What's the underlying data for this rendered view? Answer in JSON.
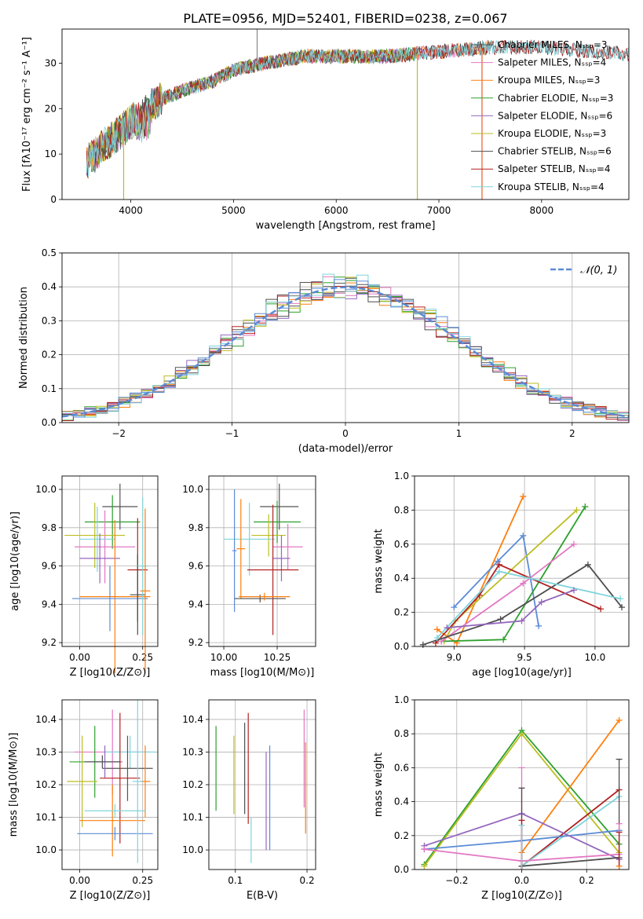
{
  "figure": {
    "title": "PLATE=0956, MJD=52401, FIBERID=0238, z=0.067"
  },
  "chart_data": [
    {
      "id": "spectrum",
      "type": "line",
      "xlabel": "wavelength [Angstrom, rest frame]",
      "ylabel": "Flux [fλ10⁻¹⁷ erg cm⁻² s⁻¹ A⁻¹]",
      "xlim": [
        3330,
        8850
      ],
      "ylim": [
        0,
        37.5
      ],
      "xticks": [
        4000,
        5000,
        6000,
        7000,
        8000
      ],
      "yticks": [
        0,
        10,
        20,
        30
      ],
      "legend_position": "right",
      "continuum_knots": [
        [
          3570,
          8
        ],
        [
          3700,
          11
        ],
        [
          3850,
          14
        ],
        [
          3950,
          16
        ],
        [
          4100,
          19
        ],
        [
          4300,
          22
        ],
        [
          4500,
          24
        ],
        [
          4800,
          26
        ],
        [
          5000,
          28.5
        ],
        [
          5300,
          30
        ],
        [
          5700,
          31.5
        ],
        [
          6000,
          31.5
        ],
        [
          6500,
          31.5
        ],
        [
          7000,
          32.5
        ],
        [
          7500,
          33.5
        ],
        [
          8000,
          33.5
        ],
        [
          8500,
          32.5
        ],
        [
          8850,
          32
        ]
      ],
      "spike_features_x": [
        3930,
        5230,
        6790,
        7420
      ],
      "series": [
        {
          "name": "Chabrier MILES, N_SSP=3",
          "color": "#555555",
          "xmax": 7500
        },
        {
          "name": "Salpeter MILES, N_SSP=4",
          "color": "#e377c2",
          "xmax": 7500
        },
        {
          "name": "Kroupa MILES, N_SSP=3",
          "color": "#ff7f0e",
          "xmax": 7500
        },
        {
          "name": "Chabrier ELODIE, N_SSP=3",
          "color": "#2ca02c",
          "xmax": 6800
        },
        {
          "name": "Salpeter ELODIE, N_SSP=6",
          "color": "#9467bd",
          "xmax": 6800
        },
        {
          "name": "Kroupa ELODIE, N_SSP=3",
          "color": "#bcbd22",
          "xmax": 6800
        },
        {
          "name": "Chabrier STELIB, N_SSP=6",
          "color": "#4d4d4d",
          "xmax": 8850
        },
        {
          "name": "Salpeter STELIB, N_SSP=4",
          "color": "#b22222",
          "xmax": 8850
        },
        {
          "name": "Kroupa STELIB, N_SSP=4",
          "color": "#7fd4dc",
          "xmax": 8850
        }
      ]
    },
    {
      "id": "residuals",
      "type": "histogram",
      "xlabel": "(data-model)/error",
      "ylabel": "Normed distribution",
      "xlim": [
        -2.5,
        2.5
      ],
      "ylim": [
        0,
        0.5
      ],
      "xticks": [
        -2,
        -1,
        0,
        1,
        2
      ],
      "yticks": [
        0.0,
        0.1,
        0.2,
        0.3,
        0.4,
        0.5
      ],
      "bin_width": 0.1,
      "grid": true,
      "reference_curve": {
        "label": "𝒩(0, 1)",
        "mu": 0,
        "sigma": 1,
        "color": "#5b8bd6"
      },
      "legend_position": "top-right",
      "series_colors": [
        "#555555",
        "#e377c2",
        "#ff7f0e",
        "#2ca02c",
        "#9467bd",
        "#bcbd22",
        "#4d4d4d",
        "#b22222",
        "#7fd4dc",
        "#5b8bd6"
      ]
    },
    {
      "id": "age_vs_Z",
      "type": "errorbar",
      "xlabel": "Z [log10(Z/Z⊙)]",
      "ylabel": "age  [log10(age/yr)]",
      "xlim": [
        -0.07,
        0.31
      ],
      "ylim": [
        9.18,
        10.07
      ],
      "xticks": [
        0.0,
        0.25
      ],
      "xticklabels": [
        "0.00",
        "0.25"
      ],
      "yticks": [
        9.2,
        9.4,
        9.6,
        9.8,
        10.0
      ],
      "points": [
        {
          "x": 0.16,
          "xerr": 0.07,
          "y": 9.91,
          "yerr": 0.12,
          "color": "#555555"
        },
        {
          "x": 0.13,
          "xerr": 0.11,
          "y": 9.83,
          "yerr": 0.14,
          "color": "#2ca02c"
        },
        {
          "x": 0.1,
          "xerr": 0.12,
          "y": 9.7,
          "yerr": 0.19,
          "color": "#e377c2"
        },
        {
          "x": 0.06,
          "xerr": 0.12,
          "y": 9.76,
          "yerr": 0.17,
          "color": "#bcbd22"
        },
        {
          "x": 0.07,
          "xerr": 0.07,
          "y": 9.74,
          "yerr": 0.17,
          "color": "#7fd4dc"
        },
        {
          "x": 0.08,
          "xerr": 0.08,
          "y": 9.64,
          "yerr": 0.13,
          "color": "#9467bd"
        },
        {
          "x": 0.23,
          "xerr": 0.04,
          "y": 9.58,
          "yerr": 0.27,
          "color": "#b22222"
        },
        {
          "x": 0.14,
          "xerr": 0.14,
          "y": 9.44,
          "yerr": 0.4,
          "color": "#ff7f0e"
        },
        {
          "x": 0.12,
          "xerr": 0.15,
          "y": 9.43,
          "yerr": 0.17,
          "color": "#5b8bd6"
        },
        {
          "x": 0.23,
          "xerr": 0.03,
          "y": 9.45,
          "yerr": 0.21,
          "color": "#4d4d4d"
        },
        {
          "x": 0.25,
          "xerr": 0.02,
          "y": 9.6,
          "yerr": 0.36,
          "color": "#7fd4dc"
        },
        {
          "x": 0.26,
          "xerr": 0.02,
          "y": 9.47,
          "yerr": 0.43,
          "color": "#ff7f0e"
        }
      ]
    },
    {
      "id": "age_vs_mass",
      "type": "errorbar",
      "xlabel": "mass [log10(M/M⊙)]",
      "ylabel": "",
      "xlim": [
        9.93,
        10.43
      ],
      "ylim": [
        9.18,
        10.07
      ],
      "xticks": [
        10.0,
        10.25
      ],
      "xticklabels": [
        "10.00",
        "10.25"
      ],
      "yticks": [
        9.2,
        9.4,
        9.6,
        9.8,
        10.0
      ],
      "points": [
        {
          "x": 10.26,
          "xerr": 0.09,
          "y": 9.91,
          "yerr": 0.12,
          "color": "#555555"
        },
        {
          "x": 10.25,
          "xerr": 0.11,
          "y": 9.83,
          "yerr": 0.11,
          "color": "#2ca02c"
        },
        {
          "x": 10.3,
          "xerr": 0.07,
          "y": 9.7,
          "yerr": 0.12,
          "color": "#e377c2"
        },
        {
          "x": 10.21,
          "xerr": 0.08,
          "y": 9.76,
          "yerr": 0.11,
          "color": "#bcbd22"
        },
        {
          "x": 10.12,
          "xerr": 0.12,
          "y": 9.74,
          "yerr": 0.19,
          "color": "#7fd4dc"
        },
        {
          "x": 10.27,
          "xerr": 0.04,
          "y": 9.64,
          "yerr": 0.12,
          "color": "#9467bd"
        },
        {
          "x": 10.23,
          "xerr": 0.12,
          "y": 9.58,
          "yerr": 0.34,
          "color": "#b22222"
        },
        {
          "x": 10.08,
          "xerr": 0.02,
          "y": 9.69,
          "yerr": 0.26,
          "color": "#ff7f0e"
        },
        {
          "x": 10.05,
          "xerr": 0.01,
          "y": 9.68,
          "yerr": 0.32,
          "color": "#5b8bd6"
        },
        {
          "x": 10.17,
          "xerr": 0.12,
          "y": 9.43,
          "yerr": 0.02,
          "color": "#4d4d4d"
        },
        {
          "x": 10.19,
          "xerr": 0.12,
          "y": 9.44,
          "yerr": 0.02,
          "color": "#ff7f0e"
        }
      ]
    },
    {
      "id": "mass_weight_vs_age",
      "type": "line",
      "xlabel": "age  [log10(age/yr)]",
      "ylabel": "mass weight",
      "xlim": [
        8.72,
        10.24
      ],
      "ylim": [
        0,
        1
      ],
      "xticks": [
        9.0,
        9.5,
        10.0
      ],
      "yticks": [
        0.0,
        0.2,
        0.4,
        0.6,
        0.8,
        1.0
      ],
      "grid": true,
      "series": [
        {
          "color": "#ff7f0e",
          "x": [
            8.88,
            9.02,
            9.49
          ],
          "y": [
            0.1,
            0.02,
            0.88
          ]
        },
        {
          "color": "#5b8bd6",
          "x": [
            9.0,
            9.31,
            9.49,
            9.6
          ],
          "y": [
            0.23,
            0.5,
            0.65,
            0.12
          ]
        },
        {
          "color": "#bcbd22",
          "x": [
            8.93,
            9.01,
            9.87
          ],
          "y": [
            0.03,
            0.15,
            0.8
          ]
        },
        {
          "color": "#2ca02c",
          "x": [
            8.91,
            9.35,
            9.93
          ],
          "y": [
            0.03,
            0.04,
            0.82
          ]
        },
        {
          "color": "#e377c2",
          "x": [
            8.91,
            9.49,
            9.85
          ],
          "y": [
            0.03,
            0.37,
            0.6
          ]
        },
        {
          "color": "#b22222",
          "x": [
            8.87,
            9.18,
            9.32,
            10.04
          ],
          "y": [
            0.02,
            0.3,
            0.48,
            0.22
          ]
        },
        {
          "color": "#4d4d4d",
          "x": [
            8.78,
            9.33,
            9.95,
            10.19
          ],
          "y": [
            0.01,
            0.16,
            0.48,
            0.23
          ]
        },
        {
          "color": "#7fd4dc",
          "x": [
            8.88,
            9.32,
            10.18
          ],
          "y": [
            0.05,
            0.44,
            0.28
          ]
        },
        {
          "color": "#9467bd",
          "x": [
            8.95,
            9.48,
            9.62,
            9.85
          ],
          "y": [
            0.11,
            0.15,
            0.26,
            0.33
          ]
        }
      ]
    },
    {
      "id": "mass_vs_Z",
      "type": "errorbar",
      "xlabel": "Z [log10(Z/Z⊙)]",
      "ylabel": "mass [log10(M/M⊙)]",
      "xlim": [
        -0.07,
        0.31
      ],
      "ylim": [
        9.94,
        10.46
      ],
      "xticks": [
        0.0,
        0.25
      ],
      "xticklabels": [
        "0.00",
        "0.25"
      ],
      "yticks": [
        10.0,
        10.1,
        10.2,
        10.3,
        10.4
      ],
      "points": [
        {
          "x": 0.13,
          "xerr": 0.15,
          "y": 10.3,
          "yerr": 0.13,
          "color": "#e377c2"
        },
        {
          "x": 0.06,
          "xerr": 0.1,
          "y": 10.27,
          "yerr": 0.11,
          "color": "#2ca02c"
        },
        {
          "x": 0.2,
          "xerr": 0.1,
          "y": 10.3,
          "yerr": 0.05,
          "color": "#7fd4dc"
        },
        {
          "x": 0.19,
          "xerr": 0.1,
          "y": 10.25,
          "yerr": 0.1,
          "color": "#555555"
        },
        {
          "x": 0.1,
          "xerr": 0.07,
          "y": 10.27,
          "yerr": 0.05,
          "color": "#9467bd"
        },
        {
          "x": 0.01,
          "xerr": 0.06,
          "y": 10.21,
          "yerr": 0.14,
          "color": "#bcbd22"
        },
        {
          "x": 0.09,
          "xerr": 0.07,
          "y": 10.27,
          "yerr": 0.02,
          "color": "#4d4d4d"
        },
        {
          "x": 0.16,
          "xerr": 0.08,
          "y": 10.22,
          "yerr": 0.2,
          "color": "#b22222"
        },
        {
          "x": 0.13,
          "xerr": 0.13,
          "y": 10.09,
          "yerr": 0.11,
          "color": "#ff7f0e"
        },
        {
          "x": 0.26,
          "xerr": 0.02,
          "y": 10.21,
          "yerr": 0.11,
          "color": "#ff7f0e"
        },
        {
          "x": 0.14,
          "xerr": 0.12,
          "y": 10.12,
          "yerr": 0.02,
          "color": "#7fd4dc"
        },
        {
          "x": 0.14,
          "xerr": 0.15,
          "y": 10.05,
          "yerr": 0.02,
          "color": "#5b8bd6"
        },
        {
          "x": 0.23,
          "xerr": 0.02,
          "y": 10.21,
          "yerr": 0.25,
          "color": "#7fd4dc"
        }
      ]
    },
    {
      "id": "mass_vs_ebv",
      "type": "errorbar",
      "xlabel": "E(B-V)",
      "ylabel": "",
      "xlim": [
        0.063,
        0.212
      ],
      "ylim": [
        9.94,
        10.46
      ],
      "xticks": [
        0.1,
        0.2
      ],
      "xticklabels": [
        "0.1",
        "0.2"
      ],
      "yticks": [
        10.0,
        10.1,
        10.2,
        10.3,
        10.4
      ],
      "points": [
        {
          "x": 0.073,
          "y": 10.25,
          "yerr": 0.13,
          "color": "#2ca02c"
        },
        {
          "x": 0.098,
          "y": 10.23,
          "yerr": 0.12,
          "color": "#bcbd22"
        },
        {
          "x": 0.113,
          "y": 10.25,
          "yerr": 0.14,
          "color": "#4d4d4d"
        },
        {
          "x": 0.118,
          "y": 10.25,
          "yerr": 0.17,
          "color": "#b22222"
        },
        {
          "x": 0.122,
          "y": 10.03,
          "yerr": 0.07,
          "color": "#7fd4dc"
        },
        {
          "x": 0.143,
          "y": 10.15,
          "yerr": 0.15,
          "color": "#9467bd"
        },
        {
          "x": 0.148,
          "y": 10.16,
          "yerr": 0.16,
          "color": "#5b8bd6"
        },
        {
          "x": 0.196,
          "y": 10.28,
          "yerr": 0.15,
          "color": "#e377c2"
        },
        {
          "x": 0.198,
          "y": 10.19,
          "yerr": 0.14,
          "color": "#ff7f0e"
        }
      ]
    },
    {
      "id": "mass_weight_vs_Z",
      "type": "line",
      "xlabel": "Z [log10(Z/Z⊙)]",
      "ylabel": "mass weight",
      "xlim": [
        -0.33,
        0.33
      ],
      "ylim": [
        0,
        1
      ],
      "xticks": [
        -0.2,
        0.0,
        0.2
      ],
      "yticks": [
        0.0,
        0.2,
        0.4,
        0.6,
        0.8,
        1.0
      ],
      "grid": true,
      "series": [
        {
          "color": "#2ca02c",
          "x": [
            -0.3,
            0.0,
            0.3
          ],
          "y": [
            0.03,
            0.82,
            0.15
          ]
        },
        {
          "color": "#bcbd22",
          "x": [
            -0.3,
            0.0,
            0.3
          ],
          "y": [
            0.02,
            0.8,
            0.1
          ]
        },
        {
          "color": "#ff7f0e",
          "x": [
            0.0,
            0.3
          ],
          "y": [
            0.1,
            0.88
          ]
        },
        {
          "color": "#b22222",
          "x": [
            0.0,
            0.3
          ],
          "y": [
            0.02,
            0.47
          ]
        },
        {
          "color": "#7fd4dc",
          "x": [
            0.0,
            0.3
          ],
          "y": [
            0.02,
            0.43
          ]
        },
        {
          "color": "#5b8bd6",
          "x": [
            -0.3,
            0.0,
            0.3
          ],
          "y": [
            0.12,
            0.17,
            0.23
          ]
        },
        {
          "color": "#9467bd",
          "x": [
            -0.3,
            0.0,
            0.3
          ],
          "y": [
            0.14,
            0.33,
            0.06
          ]
        },
        {
          "color": "#e377c2",
          "x": [
            -0.3,
            0.0,
            0.3
          ],
          "y": [
            0.12,
            0.05,
            0.09
          ]
        },
        {
          "color": "#4d4d4d",
          "x": [
            0.0,
            0.3
          ],
          "y": [
            0.02,
            0.07
          ]
        }
      ],
      "markers": [
        {
          "x": 0.0,
          "y": 0.6,
          "color": "#e377c2"
        },
        {
          "x": 0.0,
          "y": 0.48,
          "color": "#4d4d4d"
        },
        {
          "x": 0.0,
          "y": 0.29,
          "color": "#b22222"
        },
        {
          "x": 0.0,
          "y": 0.26,
          "color": "#7fd4dc"
        },
        {
          "x": 0.3,
          "y": 0.65,
          "color": "#4d4d4d"
        },
        {
          "x": 0.3,
          "y": 0.27,
          "color": "#e377c2"
        },
        {
          "x": 0.3,
          "y": 0.22,
          "color": "#b22222"
        },
        {
          "x": 0.3,
          "y": 0.02,
          "color": "#ff7f0e"
        }
      ]
    }
  ]
}
